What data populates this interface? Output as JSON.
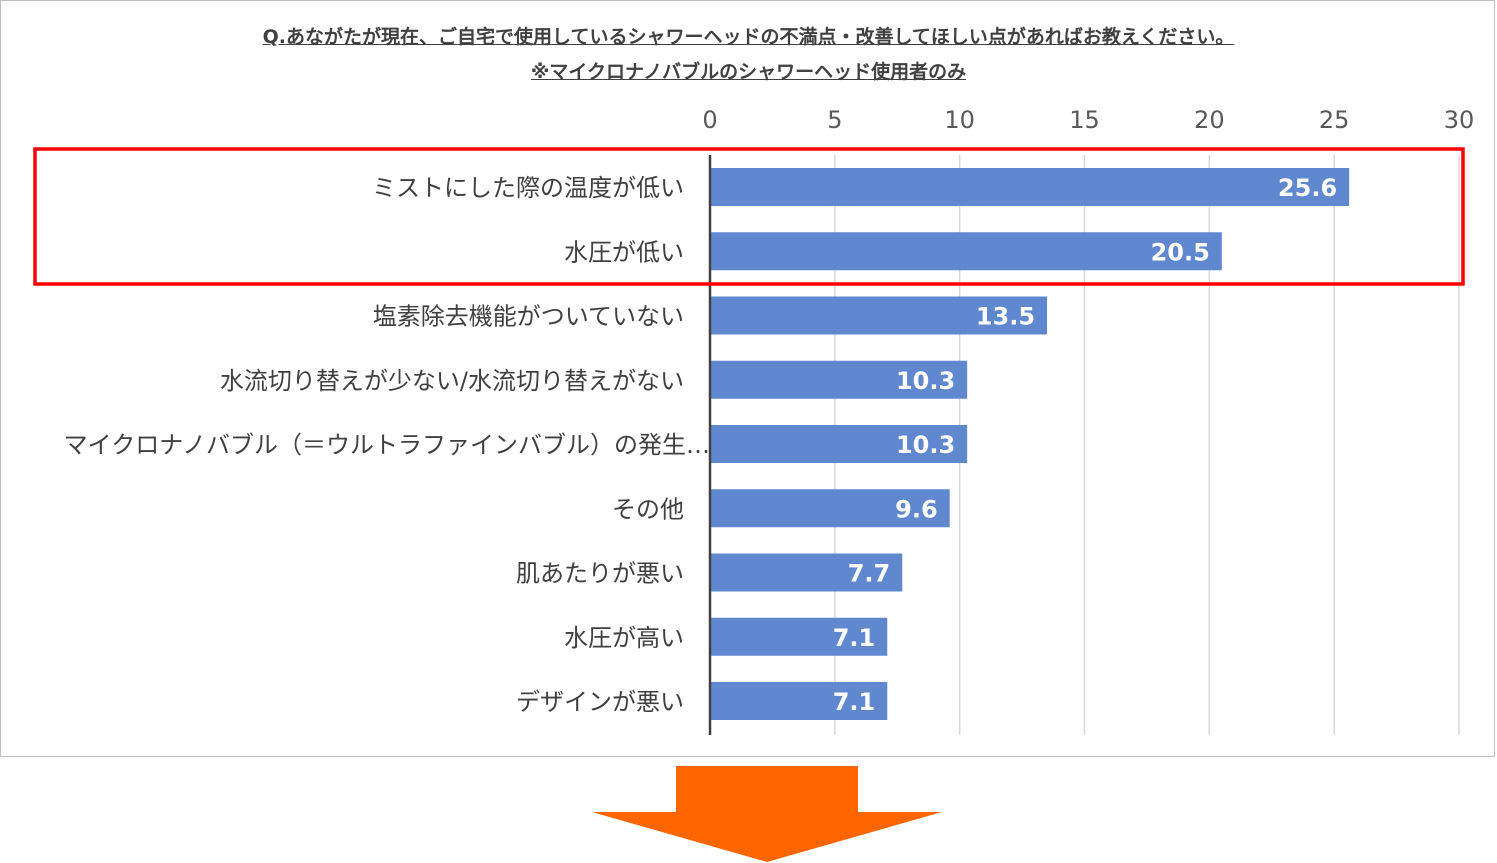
{
  "chart_data": {
    "type": "bar",
    "orientation": "horizontal",
    "title": "Q.あながたが現在、ご自宅で使用しているシャワーヘッドの不満点・改善してほしい点があればお教えください。",
    "subtitle": "※マイクロナノバブルのシャワーヘッド使用者のみ",
    "categories": [
      "ミストにした際の温度が低い",
      "水圧が低い",
      "塩素除去機能がついていない",
      "水流切り替えが少ない/水流切り替えがない",
      "マイクロナノバブル（＝ウルトラファインバブル）の発生…",
      "その他",
      "肌あたりが悪い",
      "水圧が高い",
      "デザインが悪い"
    ],
    "values": [
      25.6,
      20.5,
      13.5,
      10.3,
      10.3,
      9.6,
      7.7,
      7.1,
      7.1
    ],
    "data_labels": [
      "25.6",
      "20.5",
      "13.5",
      "10.3",
      "10.3",
      "9.6",
      "7.7",
      "7.1",
      "7.1"
    ],
    "xlim": [
      0,
      30
    ],
    "xticks": [
      "0",
      "5",
      "10",
      "15",
      "20",
      "25",
      "30"
    ],
    "xtick_values": [
      0,
      5,
      10,
      15,
      20,
      25,
      30
    ],
    "grid": true,
    "highlight": {
      "categories_index": [
        0,
        1
      ],
      "color": "#ff0000"
    },
    "bar_color": "#6088cf",
    "arrow_color": "#ff6600"
  }
}
